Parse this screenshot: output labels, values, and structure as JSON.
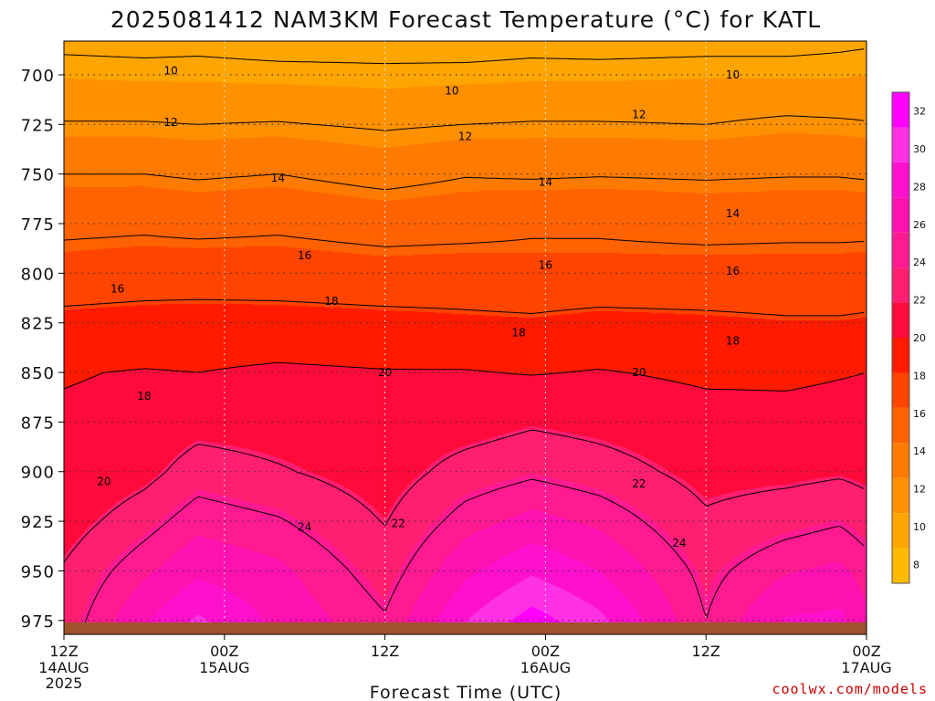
{
  "chart_data": {
    "type": "heatmap",
    "title": "2025081412 NAM3KM Forecast Temperature (°C) for KATL",
    "xlabel": "Forecast Time (UTC)",
    "ylabel": "",
    "credit": "coolwx.com/models",
    "x_ticks": [
      {
        "hour": 0,
        "label": "12Z",
        "date": "14AUG",
        "year": "2025"
      },
      {
        "hour": 12,
        "label": "00Z",
        "date": "15AUG",
        "year": ""
      },
      {
        "hour": 24,
        "label": "12Z",
        "date": "",
        "year": ""
      },
      {
        "hour": 36,
        "label": "00Z",
        "date": "16AUG",
        "year": ""
      },
      {
        "hour": 48,
        "label": "12Z",
        "date": "",
        "year": ""
      },
      {
        "hour": 60,
        "label": "00Z",
        "date": "17AUG",
        "year": ""
      }
    ],
    "xlim_hours": [
      0,
      60
    ],
    "y_ticks": [
      700,
      725,
      750,
      775,
      800,
      825,
      850,
      875,
      900,
      925,
      950,
      975
    ],
    "ylim_hpa": [
      982,
      683
    ],
    "grid": true,
    "colorbar": {
      "ticks": [
        8,
        10,
        12,
        14,
        16,
        18,
        20,
        22,
        24,
        26,
        28,
        30,
        32
      ],
      "colors": [
        "#ffbb00",
        "#ffa500",
        "#ff9000",
        "#ff7a00",
        "#ff6200",
        "#ff4400",
        "#ff1a00",
        "#ff0a3a",
        "#ff1e70",
        "#ff1a92",
        "#ff10b0",
        "#ff10cc",
        "#ff30e6",
        "#ff00ff"
      ],
      "range": [
        7,
        33
      ]
    },
    "contour_levels": [
      10,
      12,
      14,
      16,
      18,
      20,
      22,
      24
    ],
    "contour_labels": [
      {
        "text": "10",
        "hour": 8,
        "p": 698
      },
      {
        "text": "10",
        "hour": 29,
        "p": 708
      },
      {
        "text": "10",
        "hour": 50,
        "p": 700
      },
      {
        "text": "12",
        "hour": 8,
        "p": 724
      },
      {
        "text": "12",
        "hour": 30,
        "p": 731
      },
      {
        "text": "12",
        "hour": 43,
        "p": 720
      },
      {
        "text": "14",
        "hour": 16,
        "p": 752
      },
      {
        "text": "14",
        "hour": 36,
        "p": 754
      },
      {
        "text": "14",
        "hour": 50,
        "p": 770
      },
      {
        "text": "16",
        "hour": 4,
        "p": 808
      },
      {
        "text": "16",
        "hour": 18,
        "p": 791
      },
      {
        "text": "16",
        "hour": 36,
        "p": 796
      },
      {
        "text": "16",
        "hour": 50,
        "p": 799
      },
      {
        "text": "18",
        "hour": 20,
        "p": 814
      },
      {
        "text": "18",
        "hour": 34,
        "p": 830
      },
      {
        "text": "18",
        "hour": 50,
        "p": 834
      },
      {
        "text": "18",
        "hour": 6,
        "p": 862
      },
      {
        "text": "20",
        "hour": 24,
        "p": 850
      },
      {
        "text": "20",
        "hour": 43,
        "p": 850
      },
      {
        "text": "20",
        "hour": 3,
        "p": 905
      },
      {
        "text": "22",
        "hour": 43,
        "p": 906
      },
      {
        "text": "22",
        "hour": 25,
        "p": 926
      },
      {
        "text": "24",
        "hour": 18,
        "p": 928
      },
      {
        "text": "24",
        "hour": 46,
        "p": 936
      }
    ],
    "temperature_profile": {
      "pressure_hpa": [
        683,
        700,
        725,
        750,
        775,
        800,
        825,
        850,
        875,
        900,
        925,
        950,
        975
      ],
      "by_hour": [
        {
          "hour": 0,
          "t": [
            9.6,
            10.6,
            12.1,
            14.0,
            15.6,
            16.8,
            18.6,
            19.9,
            20.2,
            20.0,
            21.0,
            22.2,
            22.8
          ]
        },
        {
          "hour": 6,
          "t": [
            9.5,
            10.5,
            12.1,
            14.0,
            15.7,
            17.0,
            18.8,
            20.1,
            20.4,
            21.3,
            23.2,
            25.2,
            27.2
          ]
        },
        {
          "hour": 10,
          "t": [
            9.6,
            10.5,
            12.0,
            13.8,
            15.5,
            17.1,
            18.8,
            20.0,
            21.2,
            23.0,
            25.0,
            27.0,
            29.6
          ]
        },
        {
          "hour": 16,
          "t": [
            9.4,
            10.4,
            12.1,
            14.0,
            15.7,
            17.0,
            18.8,
            20.3,
            21.0,
            22.2,
            24.2,
            26.0,
            27.0
          ]
        },
        {
          "hour": 24,
          "t": [
            9.4,
            10.3,
            11.8,
            13.4,
            15.3,
            16.8,
            18.6,
            20.1,
            20.7,
            21.0,
            21.9,
            23.0,
            24.2
          ]
        },
        {
          "hour": 30,
          "t": [
            9.3,
            10.4,
            12.0,
            13.9,
            15.4,
            16.9,
            18.4,
            20.1,
            21.0,
            22.8,
            24.8,
            27.0,
            29.2
          ]
        },
        {
          "hour": 35,
          "t": [
            9.5,
            10.5,
            12.1,
            13.8,
            15.7,
            16.7,
            18.3,
            19.9,
            21.7,
            23.6,
            26.2,
            29.0,
            32.0
          ]
        },
        {
          "hour": 40,
          "t": [
            9.4,
            10.5,
            12.1,
            13.9,
            15.7,
            16.7,
            18.6,
            20.1,
            21.3,
            22.9,
            25.2,
            27.4,
            29.8
          ]
        },
        {
          "hour": 48,
          "t": [
            9.5,
            10.6,
            12.0,
            13.8,
            15.4,
            16.8,
            18.4,
            19.7,
            20.6,
            21.3,
            22.3,
            23.4,
            24.0
          ]
        },
        {
          "hour": 54,
          "t": [
            9.5,
            10.6,
            12.3,
            13.9,
            15.5,
            16.8,
            18.2,
            19.7,
            20.5,
            21.4,
            23.2,
            25.4,
            27.6
          ]
        },
        {
          "hour": 58,
          "t": [
            9.7,
            10.6,
            12.2,
            13.9,
            15.5,
            16.8,
            18.2,
            19.9,
            20.6,
            21.7,
            23.8,
            26.0,
            27.9
          ]
        },
        {
          "hour": 60,
          "t": [
            9.8,
            10.7,
            12.1,
            13.8,
            15.5,
            16.9,
            18.3,
            20.0,
            20.6,
            21.4,
            23.0,
            24.8,
            26.0
          ]
        }
      ]
    },
    "surface_pressure_hpa": 976,
    "colors": {
      "surface": "#a0522d",
      "credit": "#cc0000",
      "grid": "#333333",
      "contour": "#000000"
    }
  }
}
